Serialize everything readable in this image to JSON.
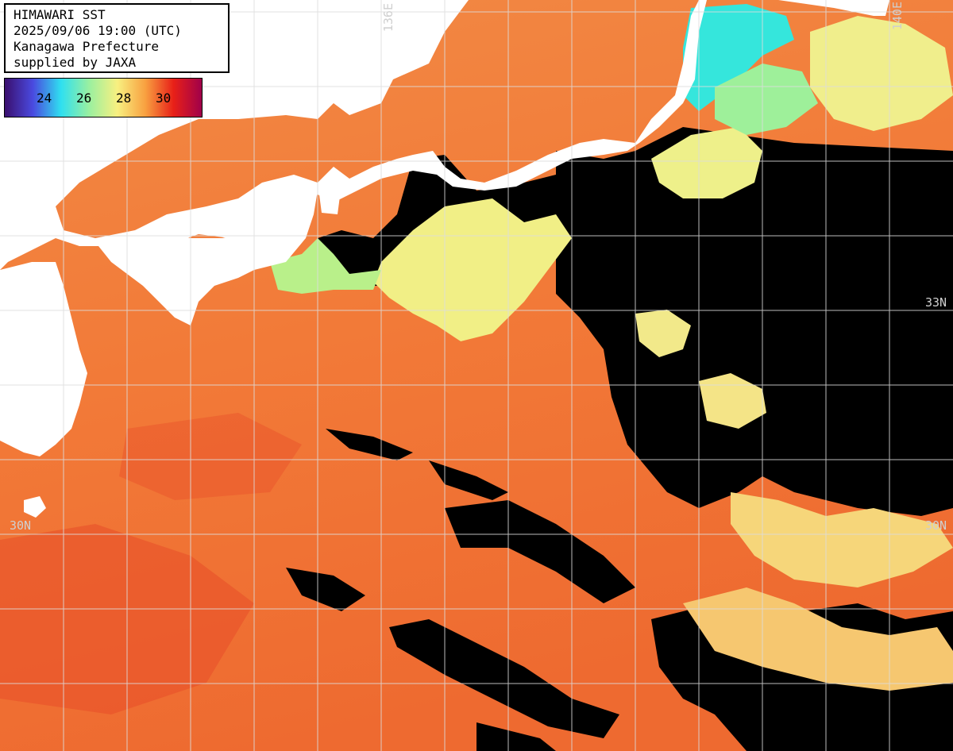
{
  "header": {
    "line1": "HIMAWARI SST",
    "line2": "2025/09/06 19:00 (UTC)",
    "line3": "Kanagawa Prefecture",
    "line4": "supplied by JAXA"
  },
  "colorbar": {
    "ticks": [
      "24",
      "26",
      "28",
      "30"
    ],
    "colors": [
      "#3a0f6e",
      "#4a4ae0",
      "#2fe0f0",
      "#9af0a0",
      "#f8f080",
      "#f8a040",
      "#e82018",
      "#a0004a"
    ]
  },
  "grid_labels": {
    "lon_136": "136E",
    "lon_140": "140E",
    "lat_33": "33N",
    "lat_30_left": "30N",
    "lat_30_right": "30N"
  },
  "map_colors": {
    "land": "#ffffff",
    "no_data": "#000000",
    "sst_warm": "#f47a3a",
    "sst_hot": "#e8502a",
    "sst_mild": "#f6a55a",
    "sst_cool_yellow": "#f1ef86",
    "sst_cool_green": "#b9f08a",
    "sst_cold_cyan": "#35e6dc",
    "grid_line": "#dddddd"
  }
}
